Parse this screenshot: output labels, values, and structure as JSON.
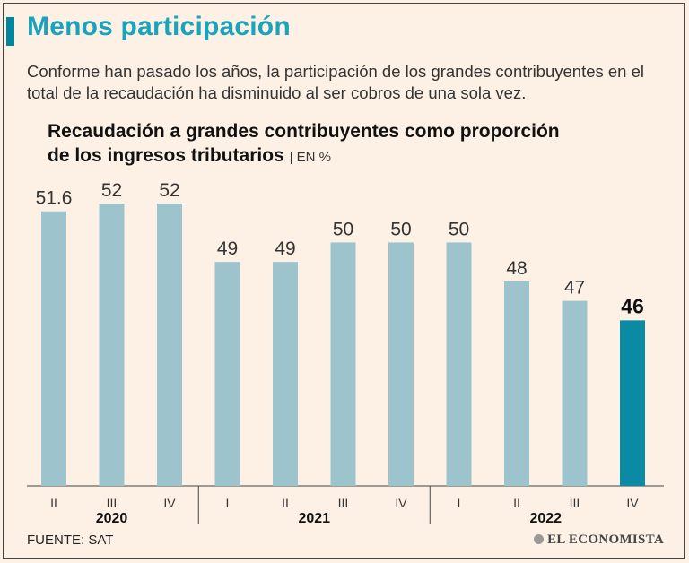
{
  "header": {
    "title": "Menos participación",
    "subtitle": "Conforme han pasado los años, la participación de los grandes contribuyentes en el total de la recaudación ha disminuido al ser cobros de una sola vez."
  },
  "chart_data": {
    "type": "bar",
    "title_line1": "Recaudación a grandes contribuyentes como proporción",
    "title_line2": "de los ingresos tributarios",
    "unit": "| EN %",
    "categories": [
      "II",
      "III",
      "IV",
      "I",
      "II",
      "III",
      "IV",
      "I",
      "II",
      "III",
      "IV"
    ],
    "groups": [
      {
        "label": "2020",
        "start": 0,
        "end": 2
      },
      {
        "label": "2021",
        "start": 3,
        "end": 6
      },
      {
        "label": "2022",
        "start": 7,
        "end": 10
      }
    ],
    "values": [
      51.6,
      52,
      52,
      49,
      49,
      50,
      50,
      50,
      48,
      47,
      46
    ],
    "value_labels": [
      "51.6",
      "52",
      "52",
      "49",
      "49",
      "50",
      "50",
      "50",
      "48",
      "47",
      "46"
    ],
    "highlight_index": 10,
    "colors": {
      "bar": "#9dc3cd",
      "highlight": "#0a8aa3"
    },
    "ylim": [
      37.5,
      52
    ]
  },
  "footer": {
    "source": "FUENTE: SAT",
    "brand": "EL ECONOMISTA"
  }
}
